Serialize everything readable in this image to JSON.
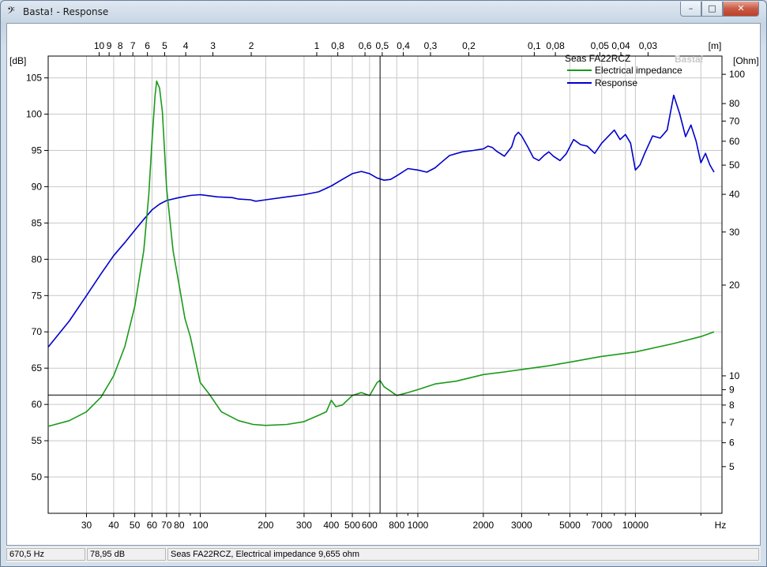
{
  "window": {
    "title": "Basta! - Response",
    "icon": "bass-clef-icon",
    "controls": {
      "minimize": "–",
      "maximize": "□",
      "close": "✕"
    }
  },
  "status": {
    "frequency": "670,5 Hz",
    "level": "78,95 dB",
    "info": "Seas FA22RCZ, Electrical impedance 9,655 ohm"
  },
  "chart_data": {
    "type": "line",
    "watermark": "Basta!",
    "legend": {
      "title": "Seas FA22RCZ",
      "position": "top-right",
      "entries": [
        "Electrical impedance",
        "Response"
      ]
    },
    "x_axis": {
      "label": "Hz",
      "scale": "log",
      "range": [
        20,
        25000
      ],
      "tick_labels": [
        30,
        40,
        50,
        60,
        70,
        80,
        100,
        200,
        300,
        400,
        500,
        600,
        800,
        1000,
        2000,
        3000,
        5000,
        7000,
        10000
      ]
    },
    "top_axis": {
      "label": "[m]",
      "tick_labels": [
        "10",
        "9",
        "8",
        "7",
        "6",
        "5",
        "4",
        "3",
        "2",
        "1",
        "0,8",
        "0,6",
        "0,5",
        "0,4",
        "0,3",
        "0,2",
        "0,1",
        "0,08",
        "0,05",
        "0,04",
        "0,03"
      ]
    },
    "y_left": {
      "label": "[dB]",
      "range": [
        45,
        108
      ],
      "ticks": [
        50,
        55,
        60,
        65,
        70,
        75,
        80,
        85,
        90,
        95,
        100,
        105
      ]
    },
    "y_right": {
      "label": "[Ohm]",
      "scale": "log",
      "range": [
        3.5,
        115
      ],
      "ticks": [
        5,
        6,
        7,
        8,
        9,
        10,
        20,
        30,
        40,
        50,
        60,
        70,
        80,
        100
      ]
    },
    "cursor": {
      "x": 670.5,
      "y": 61.3
    },
    "grid": true,
    "colors": {
      "impedance": "#1a9a1a",
      "response": "#0000cc",
      "grid": "#c8c8c8",
      "cursor": "#000000"
    },
    "series": [
      {
        "name": "Response",
        "axis": "left",
        "points": [
          [
            20,
            67.9
          ],
          [
            25,
            71.5
          ],
          [
            30,
            75
          ],
          [
            35,
            78
          ],
          [
            40,
            80.5
          ],
          [
            45,
            82.3
          ],
          [
            50,
            84
          ],
          [
            55,
            85.5
          ],
          [
            60,
            86.8
          ],
          [
            65,
            87.6
          ],
          [
            70,
            88.1
          ],
          [
            80,
            88.5
          ],
          [
            90,
            88.8
          ],
          [
            100,
            88.9
          ],
          [
            120,
            88.6
          ],
          [
            140,
            88.5
          ],
          [
            150,
            88.3
          ],
          [
            170,
            88.2
          ],
          [
            180,
            88.0
          ],
          [
            200,
            88.2
          ],
          [
            250,
            88.6
          ],
          [
            300,
            88.9
          ],
          [
            350,
            89.3
          ],
          [
            400,
            90.1
          ],
          [
            450,
            91.0
          ],
          [
            500,
            91.8
          ],
          [
            550,
            92.1
          ],
          [
            600,
            91.8
          ],
          [
            650,
            91.2
          ],
          [
            700,
            90.9
          ],
          [
            750,
            91.0
          ],
          [
            800,
            91.5
          ],
          [
            900,
            92.5
          ],
          [
            1000,
            92.3
          ],
          [
            1100,
            92.0
          ],
          [
            1200,
            92.6
          ],
          [
            1300,
            93.5
          ],
          [
            1400,
            94.3
          ],
          [
            1600,
            94.8
          ],
          [
            1800,
            95.0
          ],
          [
            2000,
            95.2
          ],
          [
            2100,
            95.6
          ],
          [
            2200,
            95.4
          ],
          [
            2300,
            94.9
          ],
          [
            2500,
            94.2
          ],
          [
            2700,
            95.5
          ],
          [
            2800,
            97.0
          ],
          [
            2900,
            97.5
          ],
          [
            3000,
            97.0
          ],
          [
            3200,
            95.5
          ],
          [
            3400,
            94.0
          ],
          [
            3600,
            93.6
          ],
          [
            3800,
            94.3
          ],
          [
            4000,
            94.8
          ],
          [
            4200,
            94.2
          ],
          [
            4500,
            93.6
          ],
          [
            4800,
            94.5
          ],
          [
            5200,
            96.5
          ],
          [
            5600,
            95.8
          ],
          [
            6000,
            95.6
          ],
          [
            6500,
            94.6
          ],
          [
            7000,
            96.0
          ],
          [
            8000,
            97.8
          ],
          [
            8500,
            96.5
          ],
          [
            9000,
            97.2
          ],
          [
            9500,
            96.0
          ],
          [
            10000,
            92.3
          ],
          [
            10500,
            93.0
          ],
          [
            11000,
            94.5
          ],
          [
            12000,
            97.0
          ],
          [
            13000,
            96.7
          ],
          [
            14000,
            97.8
          ],
          [
            15000,
            102.6
          ],
          [
            16000,
            100.0
          ],
          [
            17000,
            96.9
          ],
          [
            18000,
            98.5
          ],
          [
            19000,
            96.3
          ],
          [
            20000,
            93.3
          ],
          [
            21000,
            94.6
          ],
          [
            22000,
            93.0
          ],
          [
            23000,
            92.0
          ]
        ]
      },
      {
        "name": "Electrical impedance",
        "axis": "right",
        "points": [
          [
            20,
            6.8
          ],
          [
            25,
            7.1
          ],
          [
            30,
            7.6
          ],
          [
            35,
            8.5
          ],
          [
            40,
            10
          ],
          [
            45,
            12.5
          ],
          [
            50,
            17
          ],
          [
            55,
            26
          ],
          [
            58,
            40
          ],
          [
            60,
            60
          ],
          [
            62,
            85
          ],
          [
            63,
            95
          ],
          [
            65,
            90
          ],
          [
            67,
            75
          ],
          [
            70,
            42
          ],
          [
            75,
            26
          ],
          [
            80,
            20
          ],
          [
            85,
            15.5
          ],
          [
            90,
            13.5
          ],
          [
            100,
            9.5
          ],
          [
            110,
            8.7
          ],
          [
            125,
            7.6
          ],
          [
            150,
            7.1
          ],
          [
            175,
            6.9
          ],
          [
            200,
            6.85
          ],
          [
            250,
            6.9
          ],
          [
            300,
            7.05
          ],
          [
            350,
            7.4
          ],
          [
            380,
            7.6
          ],
          [
            400,
            8.3
          ],
          [
            420,
            7.9
          ],
          [
            450,
            8.0
          ],
          [
            500,
            8.6
          ],
          [
            550,
            8.8
          ],
          [
            600,
            8.6
          ],
          [
            650,
            9.5
          ],
          [
            670,
            9.65
          ],
          [
            700,
            9.2
          ],
          [
            750,
            8.9
          ],
          [
            800,
            8.6
          ],
          [
            900,
            8.8
          ],
          [
            1000,
            9.0
          ],
          [
            1200,
            9.4
          ],
          [
            1500,
            9.6
          ],
          [
            2000,
            10.1
          ],
          [
            2500,
            10.3
          ],
          [
            3000,
            10.5
          ],
          [
            4000,
            10.8
          ],
          [
            5000,
            11.1
          ],
          [
            7000,
            11.6
          ],
          [
            10000,
            12.0
          ],
          [
            15000,
            12.8
          ],
          [
            20000,
            13.5
          ],
          [
            23000,
            14.0
          ]
        ]
      }
    ]
  }
}
